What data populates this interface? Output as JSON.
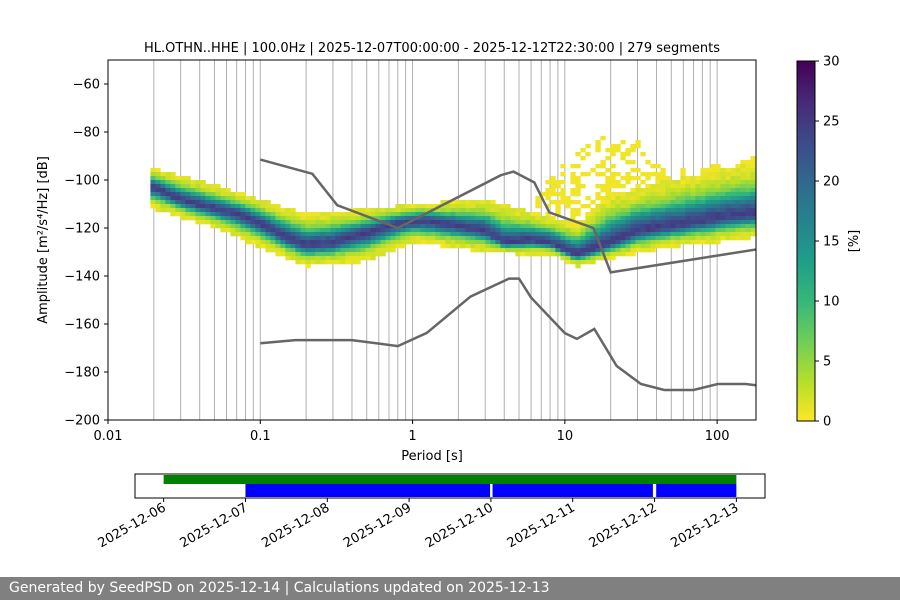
{
  "chart_data": {
    "type": "heatmap",
    "title": "HL.OTHN..HHE | 100.0Hz | 2025-12-07T00:00:00 - 2025-12-12T22:30:00 | 279 segments",
    "xlabel": "Period [s]",
    "ylabel": "Amplitude [m²/s⁴/Hz] [dB]",
    "x_scale": "log",
    "xlim": [
      0.01,
      180
    ],
    "ylim": [
      -200,
      -50
    ],
    "x_ticks": [
      0.01,
      0.1,
      1,
      10,
      100
    ],
    "x_tick_labels": [
      "0.01",
      "0.1",
      "1",
      "10",
      "100"
    ],
    "y_ticks": [
      -200,
      -180,
      -160,
      -140,
      -120,
      -100,
      -80,
      -60
    ],
    "y_tick_labels": [
      "−200",
      "−180",
      "−160",
      "−140",
      "−120",
      "−100",
      "−80",
      "−60"
    ],
    "grid": "vertical",
    "colorbar": {
      "label": "[%]",
      "range": [
        0,
        30
      ],
      "ticks": [
        0,
        5,
        10,
        15,
        20,
        25,
        30
      ],
      "tick_labels": [
        "0",
        "5",
        "10",
        "15",
        "20",
        "25",
        "30"
      ],
      "colormap": [
        "#fde725",
        "#b5de2b",
        "#6ece58",
        "#35b779",
        "#1f9e89",
        "#26828e",
        "#31688e",
        "#3e4989",
        "#482878",
        "#440154"
      ]
    },
    "psd_mode": {
      "period": [
        0.02,
        0.03,
        0.05,
        0.07,
        0.1,
        0.15,
        0.2,
        0.3,
        0.5,
        0.8,
        1.2,
        2,
        3,
        4,
        6,
        8,
        10,
        12,
        15,
        20,
        30,
        50,
        80,
        120,
        180
      ],
      "db": [
        -103,
        -108,
        -112,
        -114,
        -118,
        -124,
        -127,
        -126,
        -122,
        -118,
        -117,
        -119,
        -121,
        -126,
        -125,
        -126,
        -129,
        -131,
        -129,
        -126,
        -121,
        -119,
        -117,
        -115,
        -114
      ]
    },
    "psd_spread": {
      "period": [
        0.02,
        0.05,
        0.1,
        0.2,
        0.5,
        1,
        3,
        5,
        8,
        12,
        20,
        50,
        100,
        180
      ],
      "lower_db": [
        -112,
        -120,
        -128,
        -136,
        -134,
        -126,
        -130,
        -131,
        -131,
        -136,
        -133,
        -128,
        -126,
        -124
      ],
      "upper_db": [
        -95,
        -102,
        -108,
        -114,
        -112,
        -110,
        -108,
        -112,
        -115,
        -118,
        -106,
        -100,
        -96,
        -93
      ]
    },
    "sparse_high_patch": {
      "period": [
        6,
        10,
        15,
        22,
        30,
        50,
        80,
        120,
        180
      ],
      "upper_db": [
        -108,
        -93,
        -84,
        -80,
        -84,
        -96,
        -95,
        -92,
        -90
      ]
    },
    "nhnm": {
      "period": [
        0.1,
        0.22,
        0.32,
        0.8,
        3.8,
        4.6,
        6.3,
        7.9,
        15.4,
        20,
        354.8
      ],
      "db": [
        -91.5,
        -97.4,
        -110.5,
        -120,
        -98,
        -96.5,
        -101,
        -113.5,
        -120,
        -138.5,
        -126
      ]
    },
    "nlnm": {
      "period": [
        0.1,
        0.17,
        0.4,
        0.8,
        1.24,
        2.4,
        4.3,
        5,
        6,
        10,
        12,
        15.6,
        21.9,
        31.6,
        45,
        70,
        101,
        154,
        328
      ],
      "db": [
        -168,
        -166.7,
        -166.7,
        -169.2,
        -163.7,
        -148.6,
        -141.1,
        -141.1,
        -149,
        -163.8,
        -166.2,
        -162.1,
        -177.5,
        -185,
        -187.5,
        -187.5,
        -185,
        -185,
        -187.5
      ]
    },
    "coverage": {
      "date_ticks": [
        "2025-12-06",
        "2025-12-07",
        "2025-12-08",
        "2025-12-09",
        "2025-12-10",
        "2025-12-11",
        "2025-12-12",
        "2025-12-13"
      ],
      "range_days": [
        -0.35,
        7.35
      ],
      "data_available": [
        [
          0.0,
          7.0
        ]
      ],
      "psd_segments": [
        [
          1.0,
          3.99
        ],
        [
          4.02,
          5.98
        ],
        [
          6.02,
          7.0
        ]
      ],
      "data_color": "#008000",
      "psd_color": "#0000ff"
    },
    "noise_model_color": "#666666"
  },
  "footer": {
    "text": "Generated by SeedPSD on 2025-12-14 | Calculations updated on 2025-12-13"
  }
}
